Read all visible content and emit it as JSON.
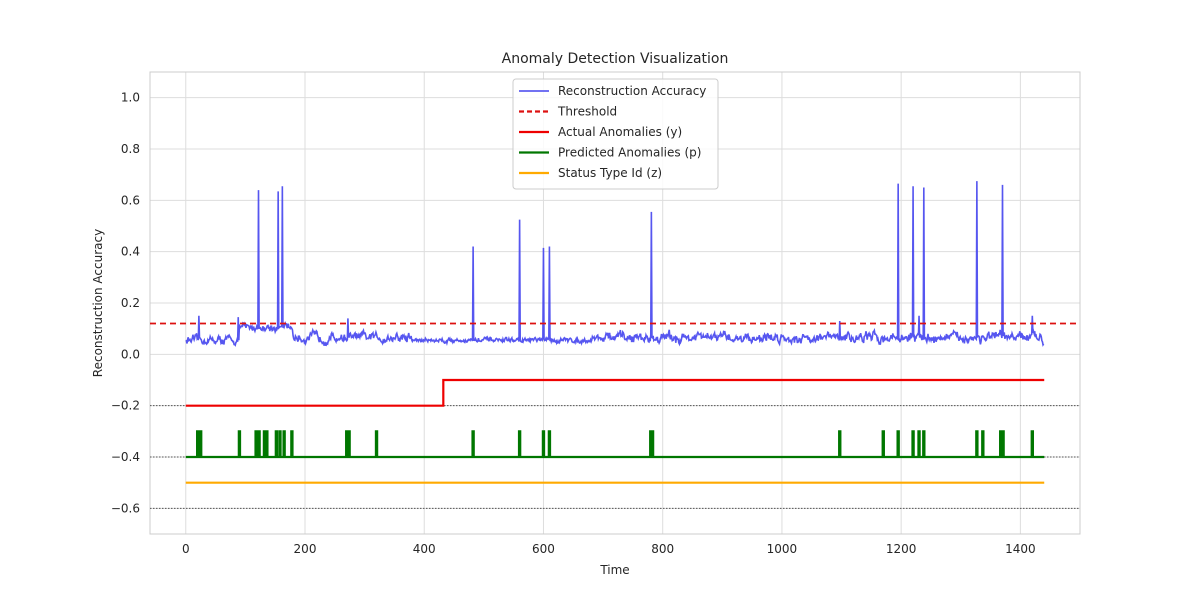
{
  "chart_data": {
    "type": "line",
    "title": "Anomaly Detection Visualization",
    "xlabel": "Time",
    "ylabel": "Reconstruction Accuracy",
    "xlim": [
      -60,
      1500
    ],
    "ylim": [
      -0.7,
      1.1
    ],
    "x_ticks": [
      0,
      200,
      400,
      600,
      800,
      1000,
      1200,
      1400
    ],
    "y_ticks": [
      -0.6,
      -0.4,
      -0.2,
      0.0,
      0.2,
      0.4,
      0.6,
      0.8,
      1.0
    ],
    "grid": true,
    "legend_position": "top-center",
    "reference_lines": [
      -0.2,
      -0.4,
      -0.6
    ],
    "n_points": 1440,
    "series": [
      {
        "name": "Reconstruction Accuracy",
        "color": "#4444ee",
        "style": "solid",
        "baseline_segments": [
          {
            "x": [
              0,
              90
            ],
            "base": 0.055,
            "noise": 0.02
          },
          {
            "x": [
              90,
              180
            ],
            "base": 0.105,
            "noise": 0.02
          },
          {
            "x": [
              180,
              380
            ],
            "base": 0.065,
            "noise": 0.025
          },
          {
            "x": [
              380,
              680
            ],
            "base": 0.055,
            "noise": 0.012
          },
          {
            "x": [
              680,
              1100
            ],
            "base": 0.065,
            "noise": 0.025
          },
          {
            "x": [
              1100,
              1440
            ],
            "base": 0.065,
            "noise": 0.025
          }
        ],
        "spikes": [
          [
            122,
            0.64
          ],
          [
            155,
            0.635
          ],
          [
            162,
            0.655
          ],
          [
            482,
            0.42
          ],
          [
            560,
            0.525
          ],
          [
            600,
            0.415
          ],
          [
            610,
            0.42
          ],
          [
            781,
            0.555
          ],
          [
            1195,
            0.665
          ],
          [
            1220,
            0.655
          ],
          [
            1238,
            0.65
          ],
          [
            1327,
            0.675
          ],
          [
            1370,
            0.66
          ],
          [
            22,
            0.15
          ],
          [
            88,
            0.145
          ],
          [
            272,
            0.14
          ],
          [
            1097,
            0.13
          ],
          [
            1230,
            0.15
          ],
          [
            1420,
            0.15
          ]
        ]
      },
      {
        "name": "Threshold",
        "color": "#dd1111",
        "style": "dashed",
        "value": 0.12
      },
      {
        "name": "Actual Anomalies (y)",
        "color": "#ee0000",
        "style": "step",
        "x": [
          0,
          432,
          432,
          1440
        ],
        "y": [
          -0.2,
          -0.2,
          -0.1,
          -0.1
        ]
      },
      {
        "name": "Predicted Anomalies (p)",
        "color": "#007700",
        "style": "pulse",
        "base": -0.4,
        "high": -0.3,
        "pulse_x": [
          20,
          25,
          90,
          118,
          123,
          132,
          136,
          152,
          158,
          165,
          178,
          270,
          274,
          320,
          482,
          560,
          600,
          610,
          780,
          783,
          1097,
          1170,
          1195,
          1220,
          1230,
          1238,
          1327,
          1337,
          1367,
          1371,
          1420
        ]
      },
      {
        "name": "Status Type Id (z)",
        "color": "#ffaa00",
        "style": "solid",
        "x": [
          0,
          1440
        ],
        "y": [
          -0.5,
          -0.5
        ]
      }
    ]
  }
}
